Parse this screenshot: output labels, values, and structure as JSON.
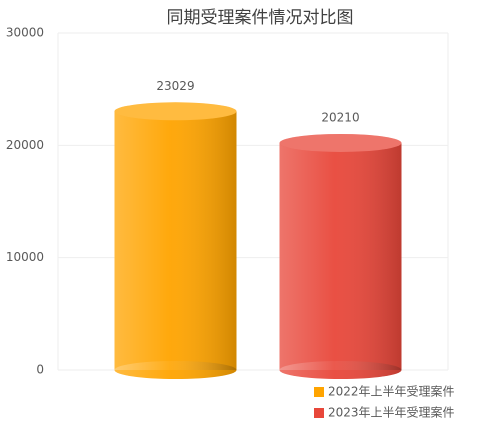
{
  "chart_data": {
    "type": "bar",
    "title": "同期受理案件情况对比图",
    "categories": [
      null
    ],
    "series": [
      {
        "name": "2022年上半年受理案件",
        "color": "#ffa400",
        "values": [
          23029
        ]
      },
      {
        "name": "2023年上半年受理案件",
        "color": "#e8473a",
        "values": [
          20210
        ]
      }
    ],
    "ylim": [
      0,
      30000
    ],
    "yticks": [
      0,
      10000,
      20000,
      30000
    ],
    "grid": true
  }
}
